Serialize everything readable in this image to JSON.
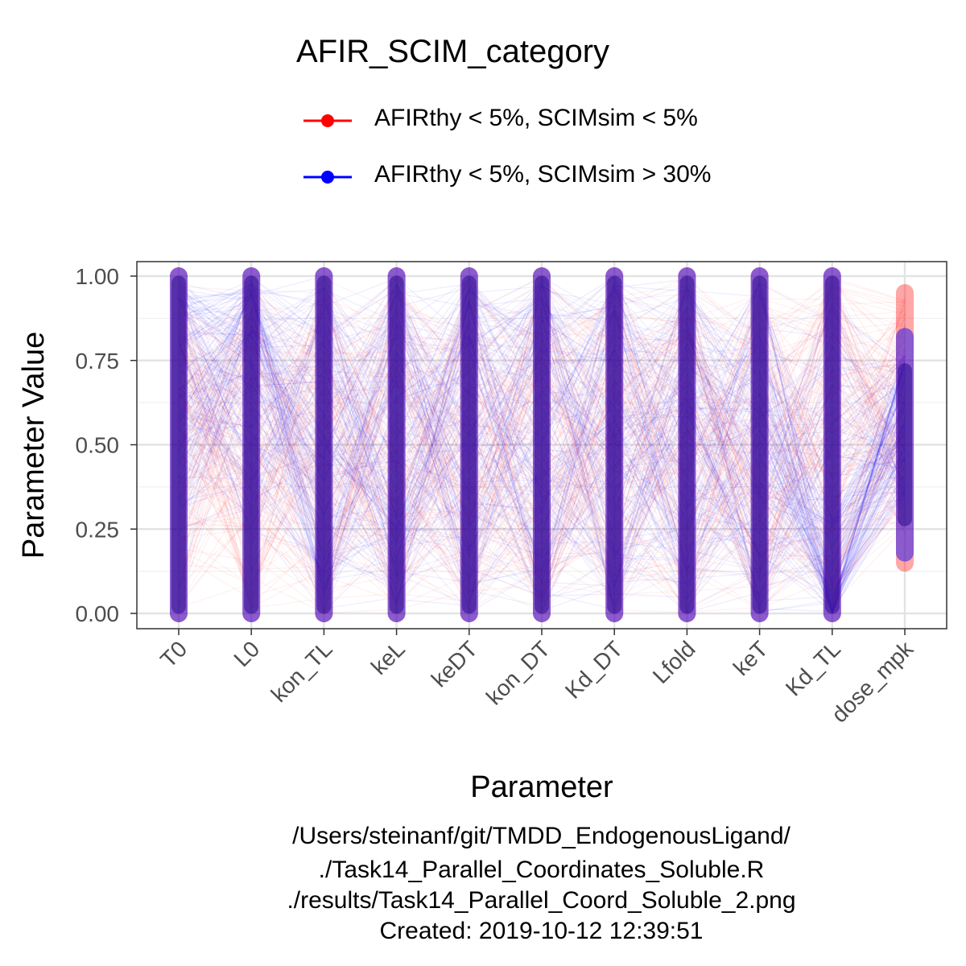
{
  "chart_data": {
    "type": "parallel-coordinates",
    "title": "",
    "xlabel": "Parameter",
    "ylabel": "Parameter Value",
    "ylim": [
      0,
      1
    ],
    "yticks": [
      "0.00",
      "0.25",
      "0.50",
      "0.75",
      "1.00"
    ],
    "grid": true,
    "legend": {
      "title": "AFIR_SCIM_category",
      "placement": "top",
      "entries": [
        {
          "label": "AFIRthy < 5%, SCIMsim < 5%",
          "color": "#ff0000"
        },
        {
          "label": "AFIRthy < 5%, SCIMsim > 30%",
          "color": "#0000ff"
        }
      ]
    },
    "parameters": [
      "T0",
      "L0",
      "kon_TL",
      "keL",
      "keDT",
      "kon_DT",
      "Kd_DT",
      "Lfold",
      "keT",
      "Kd_TL",
      "dose_mpk"
    ],
    "series": [
      {
        "name": "AFIRthy < 5%, SCIMsim < 5%",
        "color": "#ff0000",
        "value_ranges": [
          [
            0,
            1
          ],
          [
            0,
            1
          ],
          [
            0,
            1
          ],
          [
            0,
            1
          ],
          [
            0,
            1
          ],
          [
            0,
            1
          ],
          [
            0,
            1
          ],
          [
            0,
            1
          ],
          [
            0,
            1
          ],
          [
            0,
            1
          ],
          [
            0.15,
            0.95
          ]
        ]
      },
      {
        "name": "AFIRthy < 5%, SCIMsim > 30%",
        "color": "#0000ff",
        "value_ranges": [
          [
            0,
            1
          ],
          [
            0,
            1
          ],
          [
            0,
            1
          ],
          [
            0,
            1
          ],
          [
            0,
            1
          ],
          [
            0,
            1
          ],
          [
            0,
            1
          ],
          [
            0,
            1
          ],
          [
            0,
            1
          ],
          [
            0,
            1
          ],
          [
            0.15,
            0.95
          ]
        ],
        "profile": {
          "T0": "high",
          "L0": "high",
          "Kd_TL": "low",
          "dose_mpk": "mid"
        }
      }
    ]
  },
  "footer": {
    "line1": "/Users/steinanf/git/TMDD_EndogenousLigand/",
    "line2": "./Task14_Parallel_Coordinates_Soluble.R",
    "line3": "./results/Task14_Parallel_Coord_Soluble_2.png",
    "line4": "Created: 2019-10-12 12:39:51"
  }
}
